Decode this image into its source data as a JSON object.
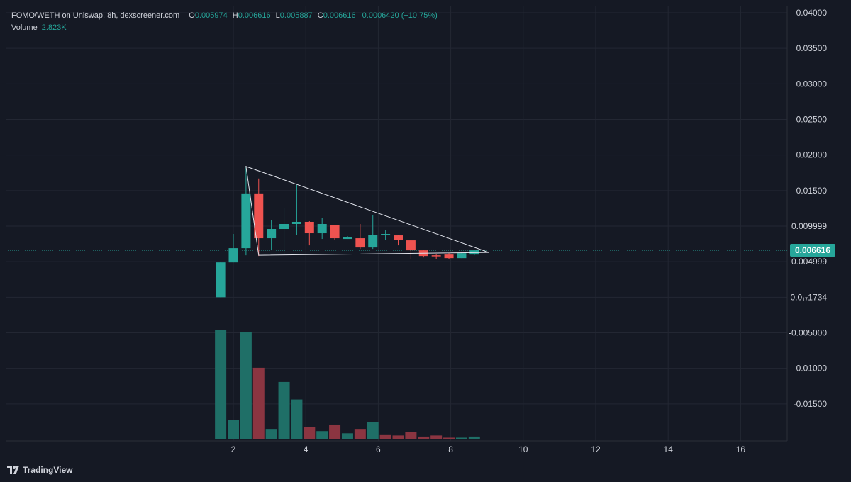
{
  "header": {
    "title": "FOMO/WETH on Uniswap, 8h, dexscreener.com",
    "open_label": "O",
    "open": "0.005974",
    "high_label": "H",
    "high": "0.006616",
    "low_label": "L",
    "low": "0.005887",
    "close_label": "C",
    "close": "0.006616",
    "change": "0.0006420 (+10.75%)",
    "volume_label": "Volume",
    "volume": "2.823K"
  },
  "last_price_tag": "0.006616",
  "brand": "TradingView",
  "colors": {
    "background": "#151924",
    "grid": "#232733",
    "up": "#26a69a",
    "down": "#ef5350",
    "volume_up": "#1f6f67",
    "volume_down": "#8b3541",
    "annotation": "#e0e3eb",
    "text": "#d1d4dc"
  },
  "chart_data": {
    "type": "candlestick",
    "x_ticks": [
      "2",
      "4",
      "6",
      "8",
      "10",
      "12",
      "14",
      "16"
    ],
    "price_axis_ticks": [
      {
        "label": "0.04000",
        "value": 0.04
      },
      {
        "label": "0.03500",
        "value": 0.035
      },
      {
        "label": "0.03000",
        "value": 0.03
      },
      {
        "label": "0.02500",
        "value": 0.025
      },
      {
        "label": "0.02000",
        "value": 0.02
      },
      {
        "label": "0.01500",
        "value": 0.015
      },
      {
        "label": "0.009999",
        "value": 0.01
      },
      {
        "label": "0.004999",
        "value": 0.005
      },
      {
        "label": "-0.0₁₇1734",
        "value": 0.0
      },
      {
        "label": "-0.005000",
        "value": -0.005
      },
      {
        "label": "-0.01000",
        "value": -0.01
      },
      {
        "label": "-0.01500",
        "value": -0.015
      }
    ],
    "ylim": [
      -0.02,
      0.04
    ],
    "xlim": [
      0.6,
      17.4
    ],
    "candles": [
      {
        "x": 1.65,
        "o": 0.0,
        "h": 0.0049,
        "l": 0.0,
        "c": 0.0049
      },
      {
        "x": 2.0,
        "o": 0.0049,
        "h": 0.0089,
        "l": 0.0049,
        "c": 0.0069
      },
      {
        "x": 2.35,
        "o": 0.0069,
        "h": 0.0184,
        "l": 0.0059,
        "c": 0.0146
      },
      {
        "x": 2.7,
        "o": 0.0146,
        "h": 0.0167,
        "l": 0.0058,
        "c": 0.0083
      },
      {
        "x": 3.05,
        "o": 0.0083,
        "h": 0.0108,
        "l": 0.0066,
        "c": 0.0096
      },
      {
        "x": 3.4,
        "o": 0.0096,
        "h": 0.0125,
        "l": 0.0061,
        "c": 0.0103
      },
      {
        "x": 3.75,
        "o": 0.0103,
        "h": 0.0158,
        "l": 0.0088,
        "c": 0.0106
      },
      {
        "x": 4.1,
        "o": 0.0106,
        "h": 0.0107,
        "l": 0.0073,
        "c": 0.009
      },
      {
        "x": 4.45,
        "o": 0.009,
        "h": 0.0111,
        "l": 0.0082,
        "c": 0.0103
      },
      {
        "x": 4.8,
        "o": 0.0101,
        "h": 0.0102,
        "l": 0.0081,
        "c": 0.0083
      },
      {
        "x": 5.15,
        "o": 0.0082,
        "h": 0.0086,
        "l": 0.0082,
        "c": 0.0085
      },
      {
        "x": 5.5,
        "o": 0.0083,
        "h": 0.0103,
        "l": 0.0068,
        "c": 0.007
      },
      {
        "x": 5.85,
        "o": 0.007,
        "h": 0.0115,
        "l": 0.0068,
        "c": 0.0088
      },
      {
        "x": 6.2,
        "o": 0.0089,
        "h": 0.0094,
        "l": 0.0081,
        "c": 0.0089
      },
      {
        "x": 6.55,
        "o": 0.0087,
        "h": 0.0088,
        "l": 0.0073,
        "c": 0.0081
      },
      {
        "x": 6.9,
        "o": 0.008,
        "h": 0.008,
        "l": 0.0054,
        "c": 0.0066
      },
      {
        "x": 7.25,
        "o": 0.0066,
        "h": 0.0067,
        "l": 0.0056,
        "c": 0.0058
      },
      {
        "x": 7.6,
        "o": 0.0059,
        "h": 0.0061,
        "l": 0.0054,
        "c": 0.0058
      },
      {
        "x": 7.95,
        "o": 0.006,
        "h": 0.0062,
        "l": 0.0054,
        "c": 0.0055
      },
      {
        "x": 8.3,
        "o": 0.0055,
        "h": 0.0064,
        "l": 0.0055,
        "c": 0.0062
      },
      {
        "x": 8.65,
        "o": 0.006,
        "h": 0.0066,
        "l": 0.0059,
        "c": 0.0066
      }
    ],
    "volume": [
      {
        "x": 1.65,
        "v": 100,
        "dir": "up"
      },
      {
        "x": 2.0,
        "v": 17,
        "dir": "up"
      },
      {
        "x": 2.35,
        "v": 98,
        "dir": "up"
      },
      {
        "x": 2.7,
        "v": 65,
        "dir": "down"
      },
      {
        "x": 3.05,
        "v": 9,
        "dir": "up"
      },
      {
        "x": 3.4,
        "v": 52,
        "dir": "up"
      },
      {
        "x": 3.75,
        "v": 36,
        "dir": "up"
      },
      {
        "x": 4.1,
        "v": 11,
        "dir": "down"
      },
      {
        "x": 4.45,
        "v": 7,
        "dir": "up"
      },
      {
        "x": 4.8,
        "v": 13,
        "dir": "down"
      },
      {
        "x": 5.15,
        "v": 5,
        "dir": "up"
      },
      {
        "x": 5.5,
        "v": 9,
        "dir": "down"
      },
      {
        "x": 5.85,
        "v": 15,
        "dir": "up"
      },
      {
        "x": 6.2,
        "v": 4,
        "dir": "down"
      },
      {
        "x": 6.55,
        "v": 3,
        "dir": "down"
      },
      {
        "x": 6.9,
        "v": 6,
        "dir": "down"
      },
      {
        "x": 7.25,
        "v": 2,
        "dir": "down"
      },
      {
        "x": 7.6,
        "v": 3,
        "dir": "down"
      },
      {
        "x": 7.95,
        "v": 1,
        "dir": "down"
      },
      {
        "x": 8.3,
        "v": 1,
        "dir": "up"
      },
      {
        "x": 8.65,
        "v": 2,
        "dir": "up"
      }
    ],
    "annotations": {
      "triangle": [
        {
          "x": 2.35,
          "y": 0.0184
        },
        {
          "x": 9.05,
          "y": 0.0063
        },
        {
          "x": 2.7,
          "y": 0.0059
        }
      ]
    },
    "last_price": 0.006616
  }
}
